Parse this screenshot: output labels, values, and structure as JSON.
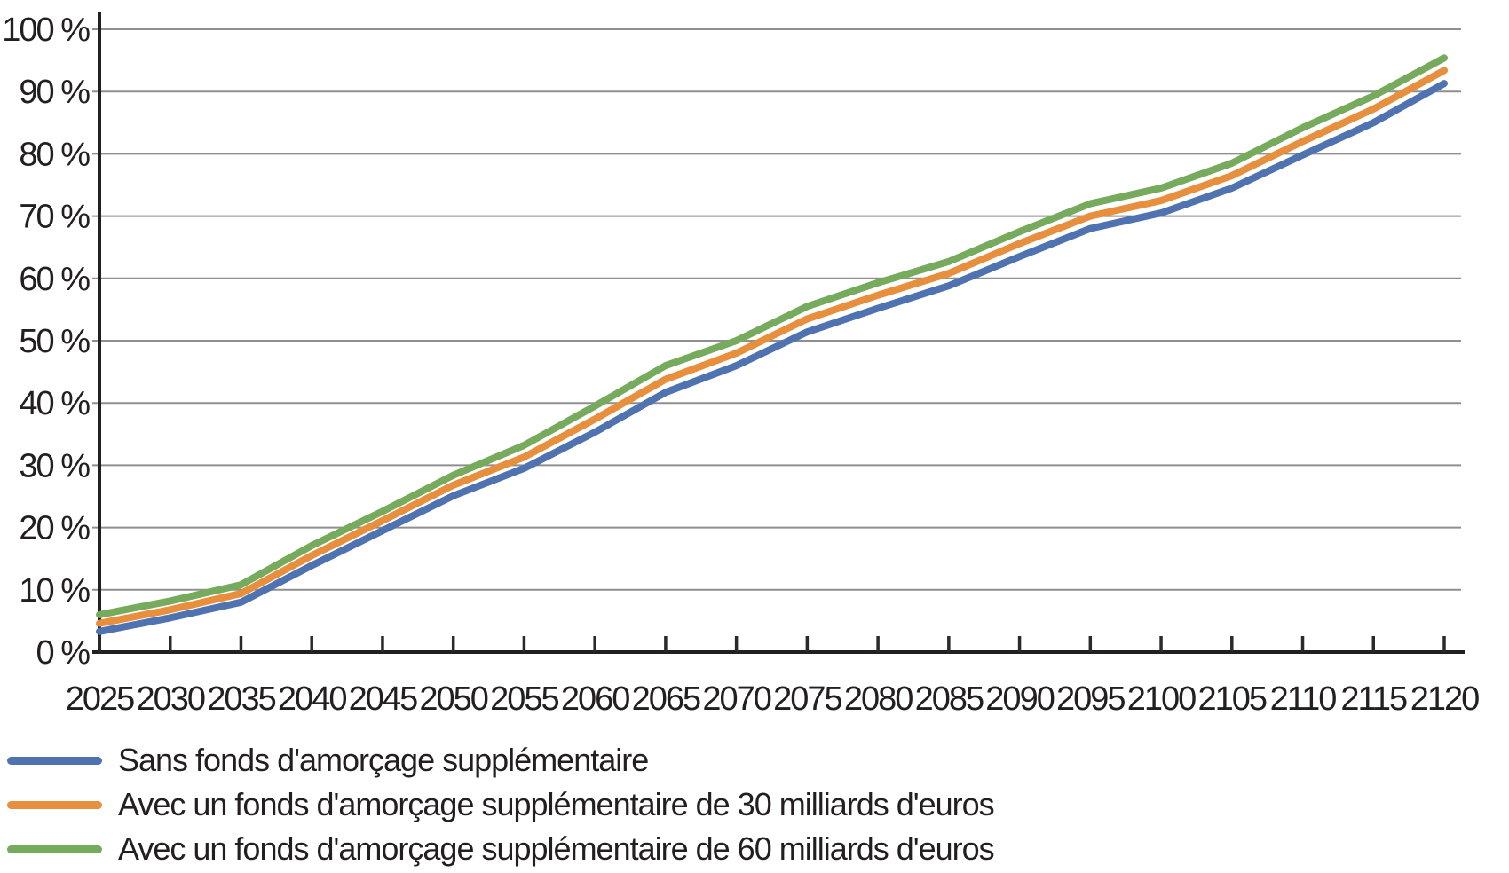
{
  "chart_data": {
    "type": "line",
    "title": "",
    "xlabel": "",
    "ylabel": "",
    "xlim": [
      2025,
      2120
    ],
    "ylim": [
      0,
      100
    ],
    "grid": "horizontal",
    "legend_position": "bottom-left",
    "x": [
      2025,
      2030,
      2035,
      2040,
      2045,
      2050,
      2055,
      2060,
      2065,
      2070,
      2075,
      2080,
      2085,
      2090,
      2095,
      2100,
      2105,
      2110,
      2115,
      2120
    ],
    "y_ticks": [
      {
        "value": 0,
        "label": "0 %"
      },
      {
        "value": 10,
        "label": "10 %"
      },
      {
        "value": 20,
        "label": "20 %"
      },
      {
        "value": 30,
        "label": "30 %"
      },
      {
        "value": 40,
        "label": "40 %"
      },
      {
        "value": 50,
        "label": "50 %"
      },
      {
        "value": 60,
        "label": "60 %"
      },
      {
        "value": 70,
        "label": "70 %"
      },
      {
        "value": 80,
        "label": "80 %"
      },
      {
        "value": 90,
        "label": "90 %"
      },
      {
        "value": 100,
        "label": "100 %"
      }
    ],
    "series": [
      {
        "name": "Sans fonds d'amorçage supplémentaire",
        "color": "#4e73b0",
        "values": [
          3.3,
          5.5,
          8.0,
          13.9,
          19.5,
          25.1,
          29.5,
          35.3,
          41.7,
          46.0,
          51.4,
          55.2,
          58.8,
          63.5,
          68.0,
          70.5,
          74.5,
          79.8,
          85.0,
          91.3
        ]
      },
      {
        "name": "Avec un fonds d'amorçage supplémentaire de 30 milliards d'euros",
        "color": "#e78f3d",
        "values": [
          4.6,
          6.8,
          9.4,
          15.5,
          21.1,
          26.8,
          31.3,
          37.4,
          43.8,
          48.0,
          53.5,
          57.3,
          60.8,
          65.6,
          70.0,
          72.5,
          76.5,
          82.0,
          87.2,
          93.4
        ]
      },
      {
        "name": "Avec un fonds d'amorçage supplémentaire de 60 milliards d'euros",
        "color": "#76ab5d",
        "values": [
          6.0,
          8.2,
          10.8,
          17.1,
          22.6,
          28.4,
          33.2,
          39.5,
          46.0,
          50.0,
          55.5,
          59.3,
          62.7,
          67.5,
          72.0,
          74.5,
          78.5,
          84.2,
          89.3,
          95.4
        ]
      }
    ]
  },
  "colors": {
    "axis": "#231f20",
    "grid": "#8f8f8f",
    "text": "#231f20",
    "background": "#ffffff"
  }
}
